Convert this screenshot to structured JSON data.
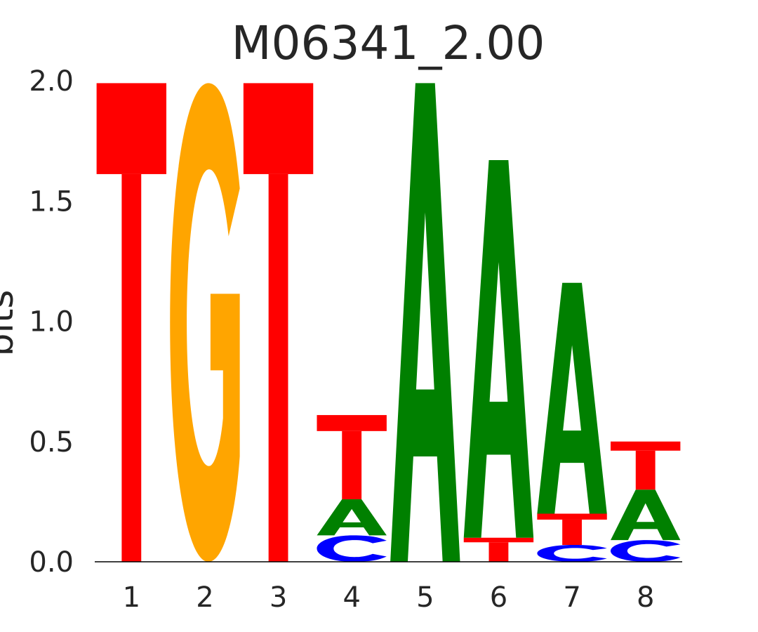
{
  "chart_data": {
    "type": "sequence-logo",
    "title": "M06341_2.00",
    "ylabel": "bits",
    "xlabel": "",
    "ylim": [
      0,
      2.0
    ],
    "yticks": [
      "0.0",
      "0.5",
      "1.0",
      "1.5",
      "2.0"
    ],
    "categories": [
      "1",
      "2",
      "3",
      "4",
      "5",
      "6",
      "7",
      "8"
    ],
    "grid": false,
    "colors": {
      "A": "#008000",
      "C": "#0000ff",
      "G": "#ffa500",
      "T": "#ff0000"
    },
    "positions": [
      {
        "position": "1",
        "letters": [
          {
            "letter": "T",
            "bits": 1.99
          }
        ]
      },
      {
        "position": "2",
        "letters": [
          {
            "letter": "G",
            "bits": 1.99
          }
        ]
      },
      {
        "position": "3",
        "letters": [
          {
            "letter": "T",
            "bits": 1.99
          }
        ]
      },
      {
        "position": "4",
        "letters": [
          {
            "letter": "C",
            "bits": 0.11
          },
          {
            "letter": "A",
            "bits": 0.15
          },
          {
            "letter": "T",
            "bits": 0.35
          }
        ]
      },
      {
        "position": "5",
        "letters": [
          {
            "letter": "A",
            "bits": 1.99
          }
        ]
      },
      {
        "position": "6",
        "letters": [
          {
            "letter": "T",
            "bits": 0.1
          },
          {
            "letter": "A",
            "bits": 1.57
          }
        ]
      },
      {
        "position": "7",
        "letters": [
          {
            "letter": "C",
            "bits": 0.07
          },
          {
            "letter": "T",
            "bits": 0.13
          },
          {
            "letter": "A",
            "bits": 0.96
          }
        ]
      },
      {
        "position": "8",
        "letters": [
          {
            "letter": "C",
            "bits": 0.09
          },
          {
            "letter": "A",
            "bits": 0.21
          },
          {
            "letter": "T",
            "bits": 0.2
          }
        ]
      }
    ]
  }
}
